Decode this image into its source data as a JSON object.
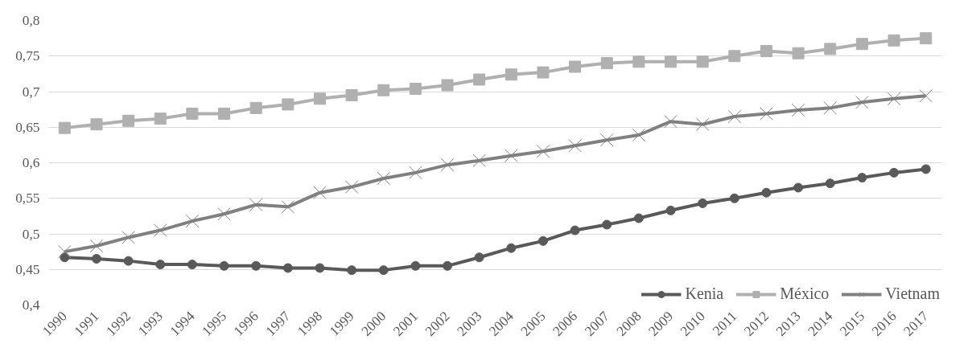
{
  "chart_data": {
    "type": "line",
    "categories": [
      "1990",
      "1991",
      "1992",
      "1993",
      "1994",
      "1995",
      "1996",
      "1997",
      "1998",
      "1999",
      "2000",
      "2001",
      "2002",
      "2003",
      "2004",
      "2005",
      "2006",
      "2007",
      "2008",
      "2009",
      "2010",
      "2011",
      "2012",
      "2013",
      "2014",
      "2015",
      "2016",
      "2017"
    ],
    "series": [
      {
        "name": "Kenia",
        "color": "#595959",
        "marker": "circle",
        "values": [
          0.467,
          0.465,
          0.462,
          0.457,
          0.457,
          0.455,
          0.455,
          0.452,
          0.452,
          0.449,
          0.449,
          0.455,
          0.455,
          0.467,
          0.48,
          0.49,
          0.505,
          0.513,
          0.522,
          0.533,
          0.543,
          0.55,
          0.558,
          0.565,
          0.571,
          0.579,
          0.586,
          0.591
        ]
      },
      {
        "name": "México",
        "color": "#b0b0b0",
        "marker": "square",
        "values": [
          0.649,
          0.654,
          0.659,
          0.662,
          0.669,
          0.669,
          0.677,
          0.682,
          0.69,
          0.695,
          0.702,
          0.704,
          0.709,
          0.717,
          0.724,
          0.727,
          0.735,
          0.74,
          0.742,
          0.742,
          0.742,
          0.75,
          0.757,
          0.754,
          0.76,
          0.767,
          0.772,
          0.775
        ]
      },
      {
        "name": "Vietnam",
        "color": "#808080",
        "marker": "cross",
        "values": [
          0.475,
          0.483,
          0.495,
          0.505,
          0.518,
          0.528,
          0.541,
          0.538,
          0.558,
          0.566,
          0.578,
          0.586,
          0.597,
          0.603,
          0.61,
          0.616,
          0.624,
          0.632,
          0.639,
          0.658,
          0.654,
          0.665,
          0.669,
          0.674,
          0.677,
          0.685,
          0.69,
          0.694
        ]
      }
    ],
    "ylim": [
      0.4,
      0.8
    ],
    "yticks": [
      {
        "value": 0.4,
        "label": "0,4"
      },
      {
        "value": 0.45,
        "label": "0,45"
      },
      {
        "value": 0.5,
        "label": "0,5"
      },
      {
        "value": 0.55,
        "label": "0,55"
      },
      {
        "value": 0.6,
        "label": "0,6"
      },
      {
        "value": 0.65,
        "label": "0,65"
      },
      {
        "value": 0.7,
        "label": "0,7"
      },
      {
        "value": 0.75,
        "label": "0,75"
      },
      {
        "value": 0.8,
        "label": "0,8"
      }
    ],
    "grid": "y",
    "legend": "bottom right",
    "line_style": "solid"
  }
}
